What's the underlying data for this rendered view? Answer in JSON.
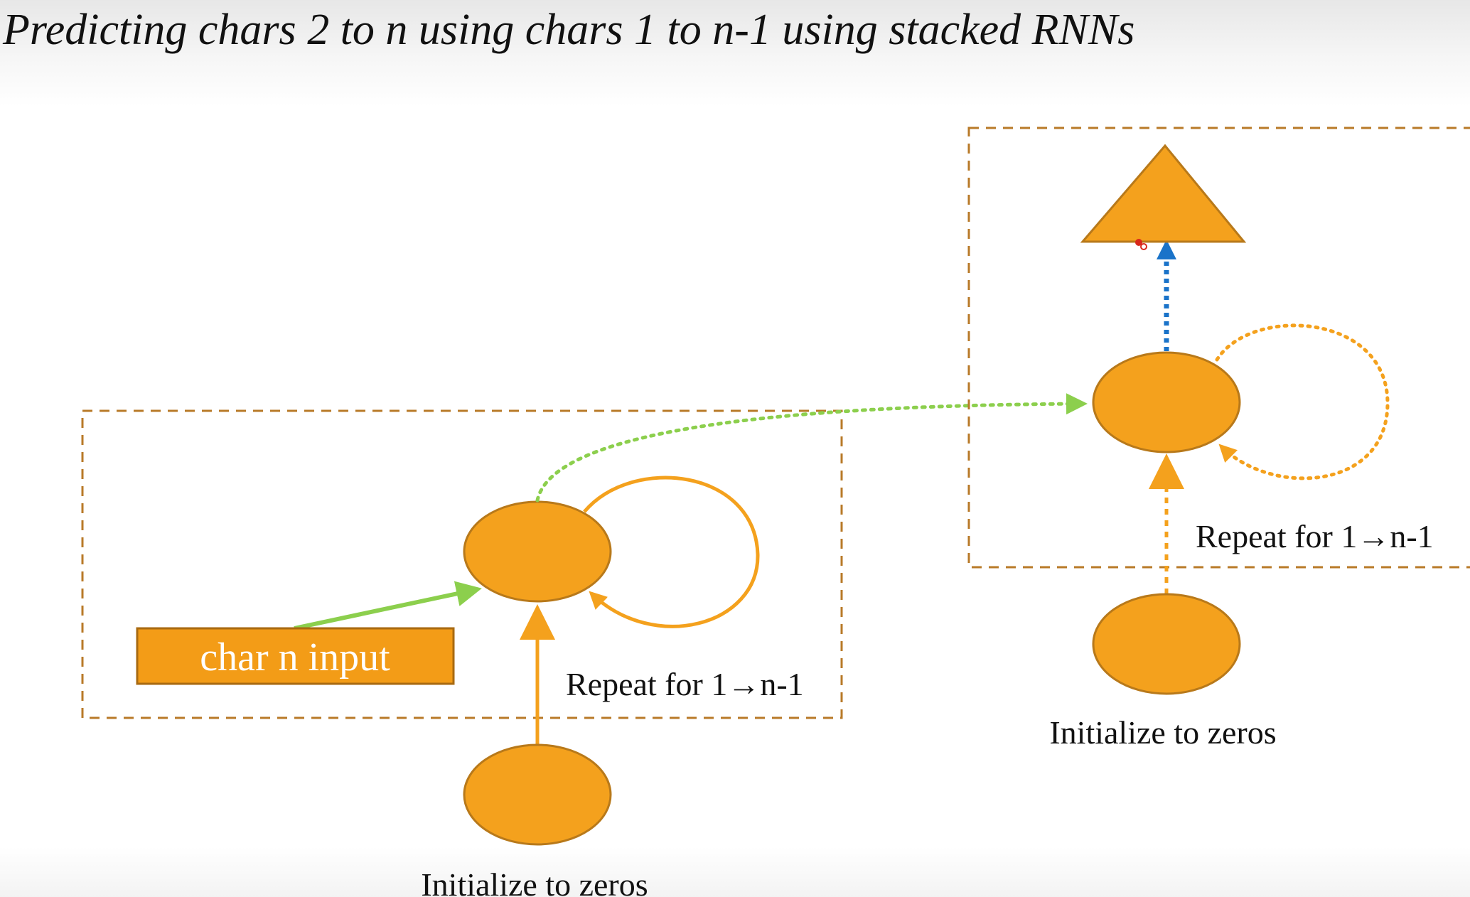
{
  "title": "Predicting chars 2 to n using chars 1 to n-1 using stacked RNNs",
  "layer1": {
    "input_label": "char n input",
    "repeat_label": "Repeat for 1→n-1",
    "init_label": "Initialize to zeros"
  },
  "layer2": {
    "repeat_label": "Repeat for 1→n-1",
    "init_label": "Initialize to zeros"
  },
  "colors": {
    "node_fill": "#f4a11d",
    "node_stroke": "#b8791a",
    "box_border": "#b87a28",
    "input_fill": "#f39c17",
    "input_stroke": "#a86a10",
    "input_text": "#ffffff",
    "recurrence_arrow": "#f4a11d",
    "input_arrow": "#8ccf4d",
    "layer_link_arrow": "#8ccf4d",
    "output_arrow": "#1a73c9",
    "text": "#111111"
  }
}
